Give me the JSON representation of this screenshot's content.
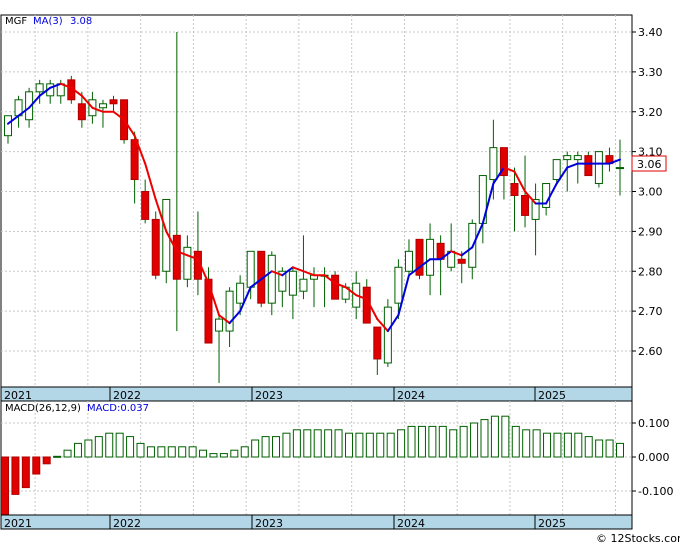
{
  "chart_data": [
    {
      "type": "candlestick",
      "ticker": "MGF",
      "ma_label": "MA(3)",
      "ma_value": "3.08",
      "last_price": "3.06",
      "ylim": [
        2.5,
        3.45
      ],
      "y_ticks": [
        "3.40",
        "3.30",
        "3.20",
        "3.10",
        "3.00",
        "2.90",
        "2.80",
        "2.70",
        "2.60"
      ],
      "x_ticks": [
        "2021",
        "2022",
        "2023",
        "2024",
        "2025"
      ],
      "colors": {
        "up": "#ffffff",
        "down": "#e00000",
        "wick": "#006000",
        "ma_up": "#0000dd",
        "ma_down": "#ee0000",
        "grid": "#c8c8c8",
        "timeline": "#b4d7e8"
      },
      "candles": [
        {
          "o": 3.14,
          "h": 3.19,
          "l": 3.12,
          "c": 3.19
        },
        {
          "o": 3.19,
          "h": 3.24,
          "l": 3.16,
          "c": 3.23
        },
        {
          "o": 3.18,
          "h": 3.26,
          "l": 3.16,
          "c": 3.25
        },
        {
          "o": 3.25,
          "h": 3.28,
          "l": 3.22,
          "c": 3.27
        },
        {
          "o": 3.24,
          "h": 3.28,
          "l": 3.22,
          "c": 3.27
        },
        {
          "o": 3.24,
          "h": 3.28,
          "l": 3.22,
          "c": 3.27
        },
        {
          "o": 3.28,
          "h": 3.29,
          "l": 3.22,
          "c": 3.23
        },
        {
          "o": 3.22,
          "h": 3.25,
          "l": 3.16,
          "c": 3.18
        },
        {
          "o": 3.19,
          "h": 3.25,
          "l": 3.17,
          "c": 3.23
        },
        {
          "o": 3.21,
          "h": 3.23,
          "l": 3.16,
          "c": 3.22
        },
        {
          "o": 3.23,
          "h": 3.24,
          "l": 3.2,
          "c": 3.22
        },
        {
          "o": 3.23,
          "h": 3.23,
          "l": 3.12,
          "c": 3.13
        },
        {
          "o": 3.13,
          "h": 3.15,
          "l": 2.97,
          "c": 3.03
        },
        {
          "o": 3.0,
          "h": 3.03,
          "l": 2.92,
          "c": 2.93
        },
        {
          "o": 2.93,
          "h": 2.95,
          "l": 2.78,
          "c": 2.79
        },
        {
          "o": 2.8,
          "h": 2.98,
          "l": 2.77,
          "c": 2.98
        },
        {
          "o": 2.89,
          "h": 3.4,
          "l": 2.65,
          "c": 2.78
        },
        {
          "o": 2.78,
          "h": 2.89,
          "l": 2.76,
          "c": 2.86
        },
        {
          "o": 2.85,
          "h": 2.95,
          "l": 2.74,
          "c": 2.78
        },
        {
          "o": 2.78,
          "h": 2.81,
          "l": 2.62,
          "c": 2.62
        },
        {
          "o": 2.65,
          "h": 2.69,
          "l": 2.52,
          "c": 2.68
        },
        {
          "o": 2.65,
          "h": 2.76,
          "l": 2.61,
          "c": 2.75
        },
        {
          "o": 2.72,
          "h": 2.79,
          "l": 2.69,
          "c": 2.77
        },
        {
          "o": 2.76,
          "h": 2.85,
          "l": 2.73,
          "c": 2.85
        },
        {
          "o": 2.85,
          "h": 2.85,
          "l": 2.71,
          "c": 2.72
        },
        {
          "o": 2.72,
          "h": 2.85,
          "l": 2.69,
          "c": 2.84
        },
        {
          "o": 2.75,
          "h": 2.81,
          "l": 2.71,
          "c": 2.8
        },
        {
          "o": 2.74,
          "h": 2.81,
          "l": 2.68,
          "c": 2.8
        },
        {
          "o": 2.75,
          "h": 2.89,
          "l": 2.73,
          "c": 2.78
        },
        {
          "o": 2.78,
          "h": 2.81,
          "l": 2.71,
          "c": 2.79
        },
        {
          "o": 2.79,
          "h": 2.81,
          "l": 2.71,
          "c": 2.79
        },
        {
          "o": 2.79,
          "h": 2.8,
          "l": 2.73,
          "c": 2.73
        },
        {
          "o": 2.73,
          "h": 2.77,
          "l": 2.72,
          "c": 2.76
        },
        {
          "o": 2.71,
          "h": 2.8,
          "l": 2.68,
          "c": 2.77
        },
        {
          "o": 2.76,
          "h": 2.78,
          "l": 2.67,
          "c": 2.67
        },
        {
          "o": 2.66,
          "h": 2.66,
          "l": 2.54,
          "c": 2.58
        },
        {
          "o": 2.57,
          "h": 2.73,
          "l": 2.56,
          "c": 2.71
        },
        {
          "o": 2.72,
          "h": 2.83,
          "l": 2.68,
          "c": 2.81
        },
        {
          "o": 2.8,
          "h": 2.88,
          "l": 2.79,
          "c": 2.85
        },
        {
          "o": 2.88,
          "h": 2.88,
          "l": 2.78,
          "c": 2.79
        },
        {
          "o": 2.79,
          "h": 2.92,
          "l": 2.74,
          "c": 2.88
        },
        {
          "o": 2.87,
          "h": 2.89,
          "l": 2.74,
          "c": 2.83
        },
        {
          "o": 2.81,
          "h": 2.92,
          "l": 2.8,
          "c": 2.85
        },
        {
          "o": 2.83,
          "h": 2.85,
          "l": 2.77,
          "c": 2.82
        },
        {
          "o": 2.81,
          "h": 2.93,
          "l": 2.78,
          "c": 2.92
        },
        {
          "o": 2.92,
          "h": 3.04,
          "l": 2.87,
          "c": 3.04
        },
        {
          "o": 3.03,
          "h": 3.18,
          "l": 2.98,
          "c": 3.11
        },
        {
          "o": 3.11,
          "h": 3.11,
          "l": 2.98,
          "c": 3.04
        },
        {
          "o": 3.02,
          "h": 3.06,
          "l": 2.9,
          "c": 2.99
        },
        {
          "o": 2.99,
          "h": 3.09,
          "l": 2.91,
          "c": 2.94
        },
        {
          "o": 2.93,
          "h": 3.02,
          "l": 2.84,
          "c": 2.98
        },
        {
          "o": 2.96,
          "h": 3.02,
          "l": 2.94,
          "c": 3.02
        },
        {
          "o": 3.03,
          "h": 3.08,
          "l": 3.02,
          "c": 3.08
        },
        {
          "o": 3.08,
          "h": 3.1,
          "l": 3.0,
          "c": 3.09
        },
        {
          "o": 3.08,
          "h": 3.1,
          "l": 3.02,
          "c": 3.09
        },
        {
          "o": 3.09,
          "h": 3.1,
          "l": 3.04,
          "c": 3.04
        },
        {
          "o": 3.02,
          "h": 3.1,
          "l": 3.01,
          "c": 3.1
        },
        {
          "o": 3.09,
          "h": 3.11,
          "l": 3.05,
          "c": 3.07
        },
        {
          "o": 3.06,
          "h": 3.13,
          "l": 2.99,
          "c": 3.06
        }
      ],
      "ma3": [
        3.17,
        3.19,
        3.21,
        3.24,
        3.26,
        3.27,
        3.26,
        3.24,
        3.21,
        3.2,
        3.2,
        3.18,
        3.14,
        3.07,
        2.98,
        2.9,
        2.85,
        2.84,
        2.83,
        2.77,
        2.69,
        2.67,
        2.7,
        2.76,
        2.78,
        2.8,
        2.79,
        2.81,
        2.8,
        2.79,
        2.79,
        2.77,
        2.76,
        2.74,
        2.73,
        2.68,
        2.65,
        2.69,
        2.79,
        2.81,
        2.83,
        2.83,
        2.85,
        2.84,
        2.86,
        2.92,
        3.02,
        3.06,
        3.05,
        3.0,
        2.97,
        2.97,
        3.02,
        3.06,
        3.07,
        3.07,
        3.07,
        3.07,
        3.08
      ],
      "ma3_up": [
        true,
        true,
        true,
        true,
        true,
        true,
        false,
        false,
        false,
        false,
        false,
        false,
        false,
        false,
        false,
        false,
        false,
        false,
        false,
        false,
        false,
        false,
        true,
        true,
        true,
        true,
        false,
        true,
        false,
        false,
        false,
        false,
        false,
        false,
        false,
        false,
        false,
        true,
        true,
        true,
        true,
        true,
        true,
        false,
        true,
        true,
        true,
        true,
        false,
        false,
        false,
        true,
        true,
        true,
        true,
        true,
        true,
        true,
        true
      ]
    },
    {
      "type": "bar",
      "label": "MACD(26,12,9)",
      "value_label": "MACD:0.037",
      "ylim": [
        -0.18,
        0.16
      ],
      "y_ticks": [
        "0.100",
        "0.000",
        "-0.100"
      ],
      "x_ticks": [
        "2021",
        "2022",
        "2023",
        "2024",
        "2025"
      ],
      "colors": {
        "positive": "#006000",
        "negative": "#e00000"
      },
      "values": [
        -0.17,
        -0.11,
        -0.09,
        -0.05,
        -0.02,
        0.002,
        0.02,
        0.04,
        0.05,
        0.06,
        0.07,
        0.07,
        0.06,
        0.04,
        0.03,
        0.03,
        0.03,
        0.03,
        0.03,
        0.02,
        0.01,
        0.01,
        0.02,
        0.03,
        0.05,
        0.06,
        0.06,
        0.07,
        0.08,
        0.08,
        0.08,
        0.08,
        0.08,
        0.07,
        0.07,
        0.07,
        0.07,
        0.07,
        0.08,
        0.09,
        0.09,
        0.09,
        0.09,
        0.08,
        0.09,
        0.1,
        0.11,
        0.12,
        0.12,
        0.09,
        0.08,
        0.08,
        0.07,
        0.07,
        0.07,
        0.07,
        0.06,
        0.05,
        0.05,
        0.04
      ]
    }
  ],
  "footer": {
    "credit": "© 12Stocks.com"
  }
}
